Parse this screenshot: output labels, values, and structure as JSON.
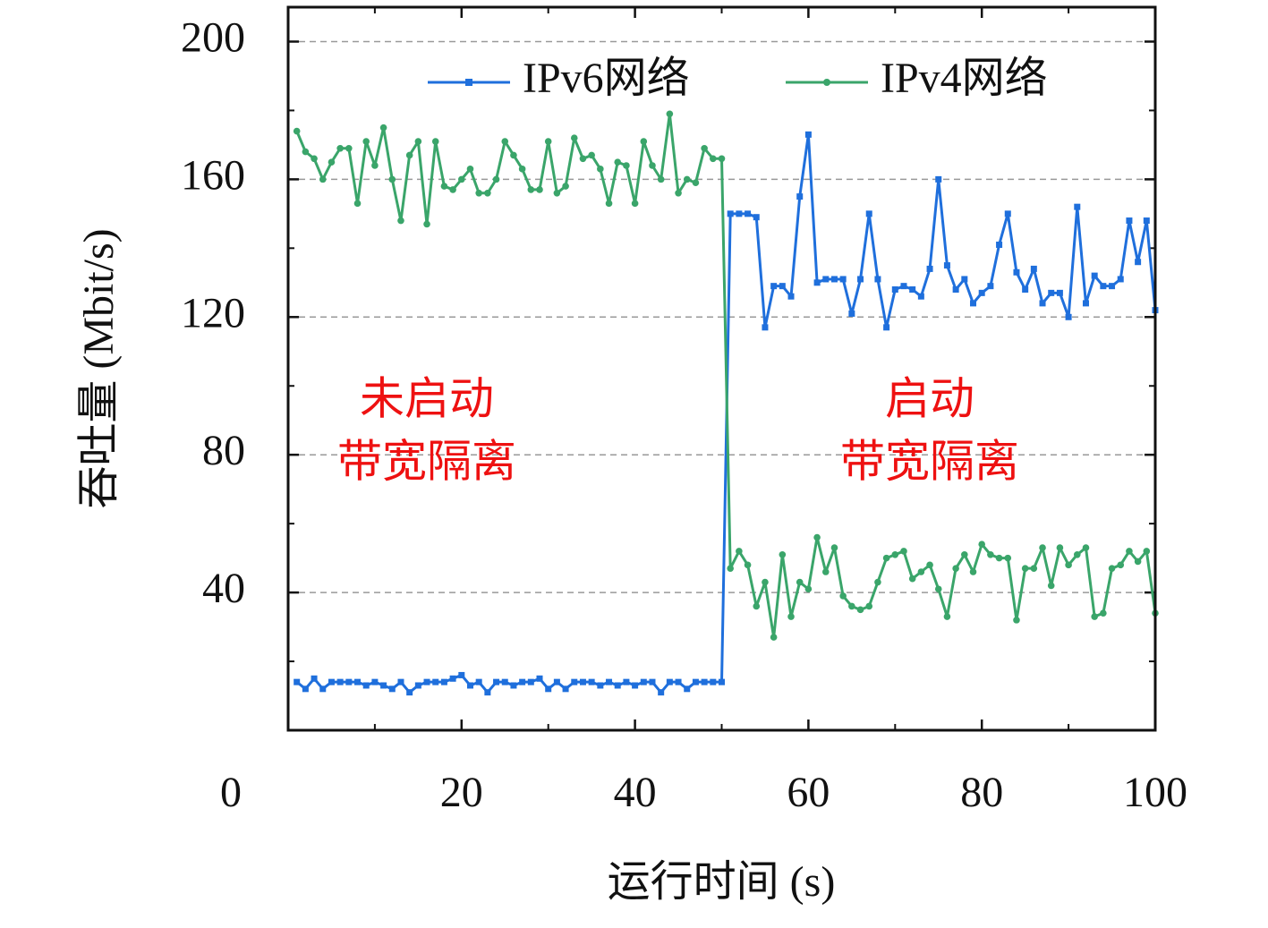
{
  "chart_data": {
    "type": "line",
    "xlabel": "运行时间 (s)",
    "ylabel": "吞吐量 (Mbit/s)",
    "xlim": [
      0,
      100
    ],
    "xticks": [
      0,
      20,
      40,
      60,
      80,
      100
    ],
    "xminorticks": [
      10,
      30,
      50,
      70,
      90
    ],
    "ylim": [
      0,
      210
    ],
    "yticks": [
      40,
      80,
      120,
      160,
      200
    ],
    "yminorticks": [
      20,
      60,
      100,
      140,
      180
    ],
    "grid": true,
    "legend": "upper right",
    "annotations": [
      {
        "lines": [
          "未启动",
          "带宽隔离"
        ],
        "x": 16,
        "y": 100
      },
      {
        "lines": [
          "启动",
          "带宽隔离"
        ],
        "x": 74,
        "y": 100
      }
    ],
    "x": [
      1,
      2,
      3,
      4,
      5,
      6,
      7,
      8,
      9,
      10,
      11,
      12,
      13,
      14,
      15,
      16,
      17,
      18,
      19,
      20,
      21,
      22,
      23,
      24,
      25,
      26,
      27,
      28,
      29,
      30,
      31,
      32,
      33,
      34,
      35,
      36,
      37,
      38,
      39,
      40,
      41,
      42,
      43,
      44,
      45,
      46,
      47,
      48,
      49,
      50,
      51,
      52,
      53,
      54,
      55,
      56,
      57,
      58,
      59,
      60,
      61,
      62,
      63,
      64,
      65,
      66,
      67,
      68,
      69,
      70,
      71,
      72,
      73,
      74,
      75,
      76,
      77,
      78,
      79,
      80,
      81,
      82,
      83,
      84,
      85,
      86,
      87,
      88,
      89,
      90,
      91,
      92,
      93,
      94,
      95,
      96,
      97,
      98,
      99,
      100
    ],
    "series": [
      {
        "name": "IPv6网络",
        "color": "#1f6fdc",
        "marker": "square",
        "values": [
          14,
          12,
          15,
          12,
          14,
          14,
          14,
          14,
          13,
          14,
          13,
          12,
          14,
          11,
          13,
          14,
          14,
          14,
          15,
          16,
          13,
          14,
          11,
          14,
          14,
          13,
          14,
          14,
          15,
          12,
          14,
          12,
          14,
          14,
          14,
          13,
          14,
          13,
          14,
          13,
          14,
          14,
          11,
          14,
          14,
          12,
          14,
          14,
          14,
          14,
          150,
          150,
          150,
          149,
          117,
          129,
          129,
          126,
          155,
          173,
          130,
          131,
          131,
          131,
          121,
          131,
          150,
          131,
          117,
          128,
          129,
          128,
          126,
          134,
          160,
          135,
          128,
          131,
          124,
          127,
          129,
          141,
          150,
          133,
          128,
          134,
          124,
          127,
          127,
          120,
          152,
          124,
          132,
          129,
          129,
          131,
          148,
          136,
          148,
          122
        ]
      },
      {
        "name": "IPv4网络",
        "color": "#3aa56a",
        "marker": "circle",
        "values": [
          174,
          168,
          166,
          160,
          165,
          169,
          169,
          153,
          171,
          164,
          175,
          160,
          148,
          167,
          171,
          147,
          171,
          158,
          157,
          160,
          163,
          156,
          156,
          160,
          171,
          167,
          163,
          157,
          157,
          171,
          156,
          158,
          172,
          166,
          167,
          163,
          153,
          165,
          164,
          153,
          171,
          164,
          160,
          179,
          156,
          160,
          159,
          169,
          166,
          166,
          47,
          52,
          48,
          36,
          43,
          27,
          51,
          33,
          43,
          41,
          56,
          46,
          53,
          39,
          36,
          35,
          36,
          43,
          50,
          51,
          52,
          44,
          46,
          48,
          41,
          33,
          47,
          51,
          46,
          54,
          51,
          50,
          50,
          32,
          47,
          47,
          53,
          42,
          53,
          48,
          51,
          53,
          33,
          34,
          47,
          48,
          52,
          49,
          52,
          34
        ]
      }
    ]
  }
}
